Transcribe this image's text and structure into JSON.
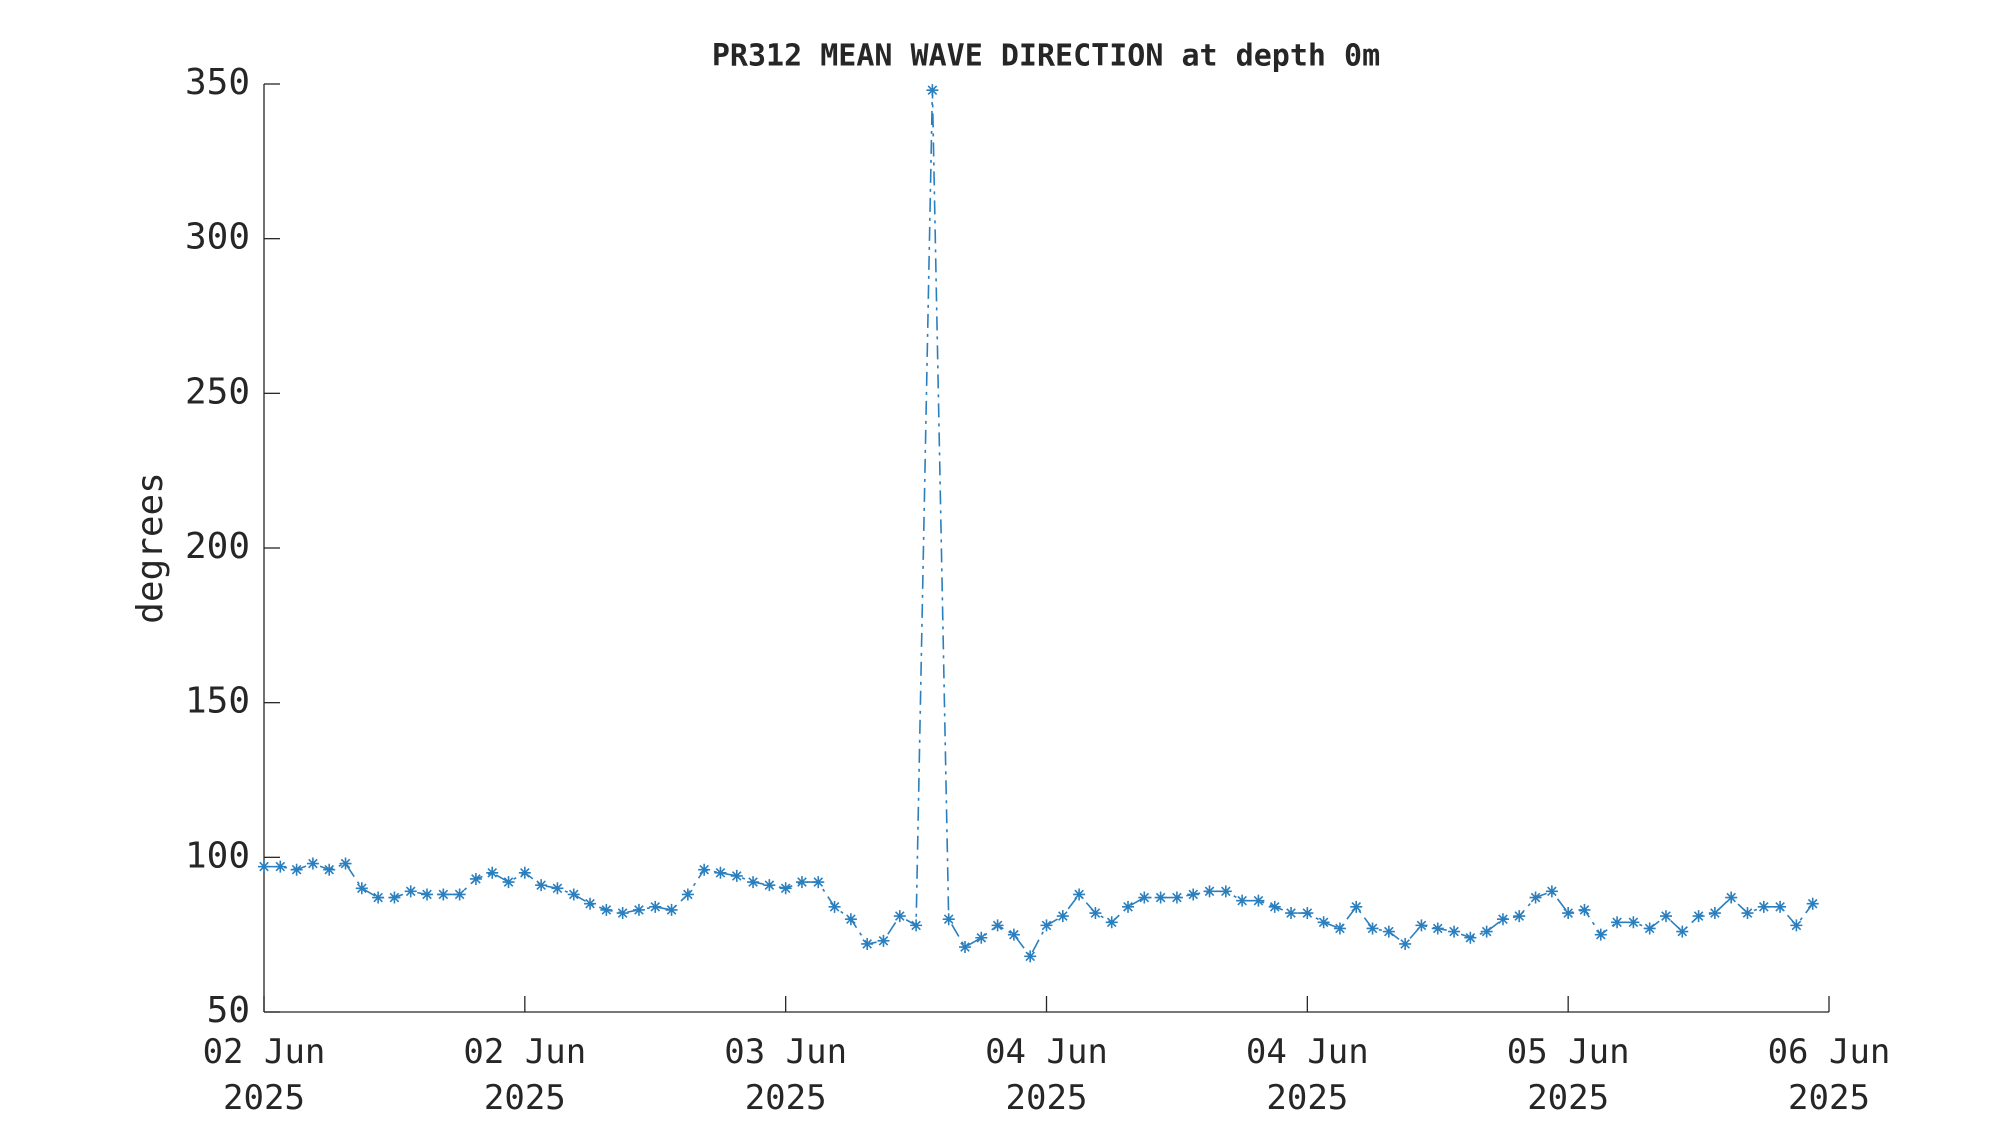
{
  "chart_data": {
    "type": "line",
    "title": "PR312 MEAN WAVE DIRECTION at depth 0m",
    "ylabel": "degrees",
    "x": [
      0,
      1,
      2,
      3,
      4,
      5,
      6,
      7,
      8,
      9,
      10,
      11,
      12,
      13,
      14,
      15,
      16,
      17,
      18,
      19,
      20,
      21,
      22,
      23,
      24,
      25,
      26,
      27,
      28,
      29,
      30,
      31,
      32,
      33,
      34,
      35,
      36,
      37,
      38,
      39,
      40,
      41,
      42,
      43,
      44,
      45,
      46,
      47,
      48,
      49,
      50,
      51,
      52,
      53,
      54,
      55,
      56,
      57,
      58,
      59,
      60,
      61,
      62,
      63,
      64,
      65,
      66,
      67,
      68,
      69,
      70,
      71,
      72,
      73,
      74,
      75,
      76,
      77,
      78,
      79,
      80,
      81,
      82,
      83,
      84,
      85,
      86,
      87,
      88,
      89,
      90,
      91,
      92,
      93,
      94,
      95
    ],
    "series": [
      {
        "name": "mean wave direction",
        "color": "#2a7fbf",
        "values": [
          97,
          97,
          96,
          98,
          96,
          98,
          90,
          87,
          87,
          89,
          88,
          88,
          88,
          93,
          95,
          92,
          95,
          91,
          90,
          88,
          85,
          83,
          82,
          83,
          84,
          83,
          88,
          96,
          95,
          94,
          92,
          91,
          90,
          92,
          92,
          84,
          80,
          72,
          73,
          81,
          78,
          348,
          80,
          71,
          74,
          78,
          75,
          68,
          78,
          81,
          88,
          82,
          79,
          84,
          87,
          87,
          87,
          88,
          89,
          89,
          86,
          86,
          84,
          82,
          82,
          79,
          77,
          84,
          77,
          76,
          72,
          78,
          77,
          76,
          74,
          76,
          80,
          81,
          87,
          89,
          82,
          83,
          75,
          79,
          79,
          77,
          81,
          76,
          81,
          82,
          87,
          82,
          84,
          84,
          78,
          85
        ]
      }
    ],
    "xlim": [
      0,
      96
    ],
    "xticks": [
      {
        "value": 0,
        "label": "02 Jun\n2025"
      },
      {
        "value": 16,
        "label": "02 Jun\n2025"
      },
      {
        "value": 32,
        "label": "03 Jun\n2025"
      },
      {
        "value": 48,
        "label": "04 Jun\n2025"
      },
      {
        "value": 64,
        "label": "04 Jun\n2025"
      },
      {
        "value": 80,
        "label": "05 Jun\n2025"
      },
      {
        "value": 96,
        "label": "06 Jun\n2025"
      }
    ],
    "ylim": [
      50,
      350
    ],
    "yticks": [
      50,
      100,
      150,
      200,
      250,
      300,
      350
    ],
    "grid": false
  }
}
